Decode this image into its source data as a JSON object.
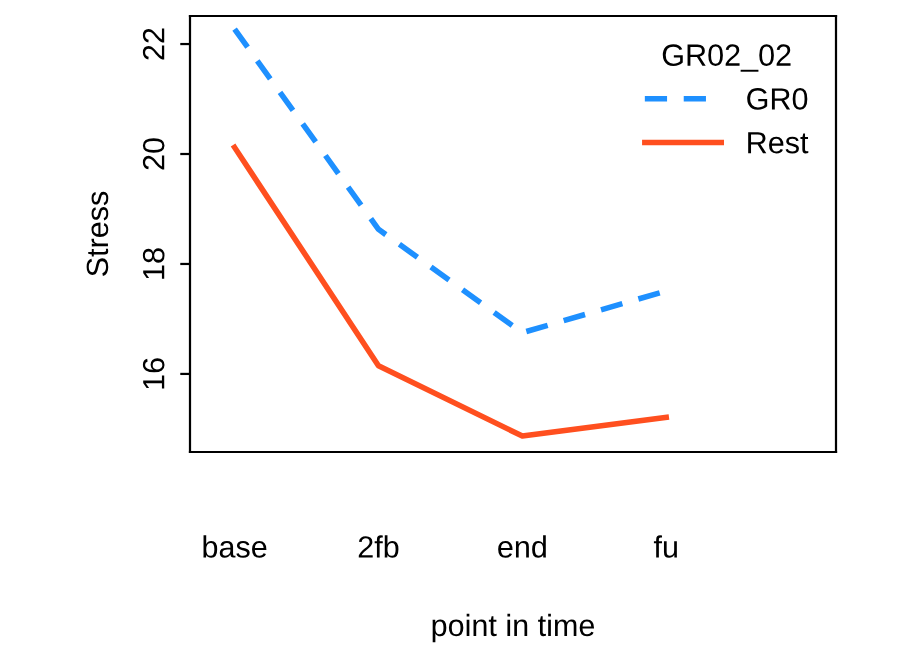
{
  "chart_data": {
    "type": "line",
    "xlabel": "point in time",
    "ylabel": "Stress",
    "legend_title": "GR02_02",
    "categories": [
      "base",
      "2fb",
      "end",
      "fu"
    ],
    "series": [
      {
        "name": "GR0",
        "color": "#1e90ff",
        "line_style": "dashed",
        "values": [
          22.27,
          18.63,
          16.75,
          17.51
        ]
      },
      {
        "name": "Rest",
        "color": "#ff4f1f",
        "line_style": "solid",
        "values": [
          20.12,
          16.15,
          14.87,
          15.21
        ]
      }
    ],
    "ylim": [
      14.58,
      22.51
    ],
    "yticks": [
      16,
      18,
      20,
      22
    ],
    "grid": false,
    "legend": "top right"
  }
}
